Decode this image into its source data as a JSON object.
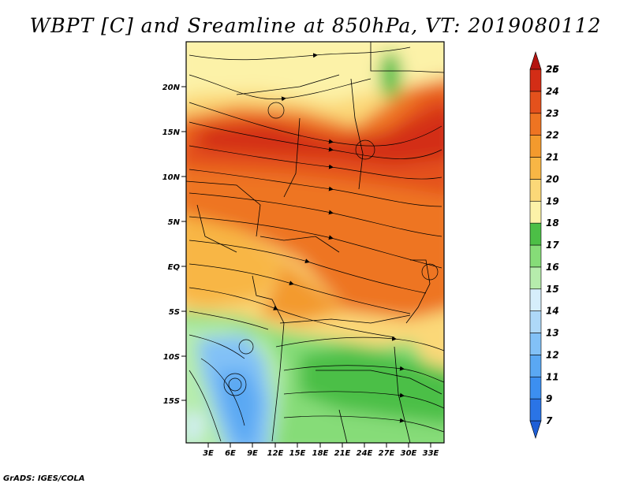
{
  "title": "WBPT [C] and Sreamline at 850hPa, VT: 2019080112",
  "footer": "GrADS: IGES/COLA",
  "map": {
    "lat_ticks": [
      "20N",
      "15N",
      "10N",
      "5N",
      "EQ",
      "5S",
      "10S",
      "15S"
    ],
    "lon_ticks": [
      "3E",
      "6E",
      "9E",
      "12E",
      "15E",
      "18E",
      "21E",
      "24E",
      "27E",
      "30E",
      "33E"
    ]
  },
  "colorbar": {
    "labels": [
      "7",
      "9",
      "11",
      "12",
      "13",
      "14",
      "15",
      "16",
      "17",
      "18",
      "19",
      "20",
      "21",
      "22",
      "23",
      "24",
      "25",
      "26"
    ],
    "colors": [
      "#1f5fd6",
      "#2a74e6",
      "#3c8ff0",
      "#5aa8f3",
      "#82c1f7",
      "#aed8f8",
      "#d6eefb",
      "#b6ecac",
      "#86dc78",
      "#4cbf46",
      "#fcf2a8",
      "#fbd878",
      "#f8b645",
      "#f39a2d",
      "#ee7422",
      "#e4511c",
      "#d32d16",
      "#b41410"
    ]
  }
}
